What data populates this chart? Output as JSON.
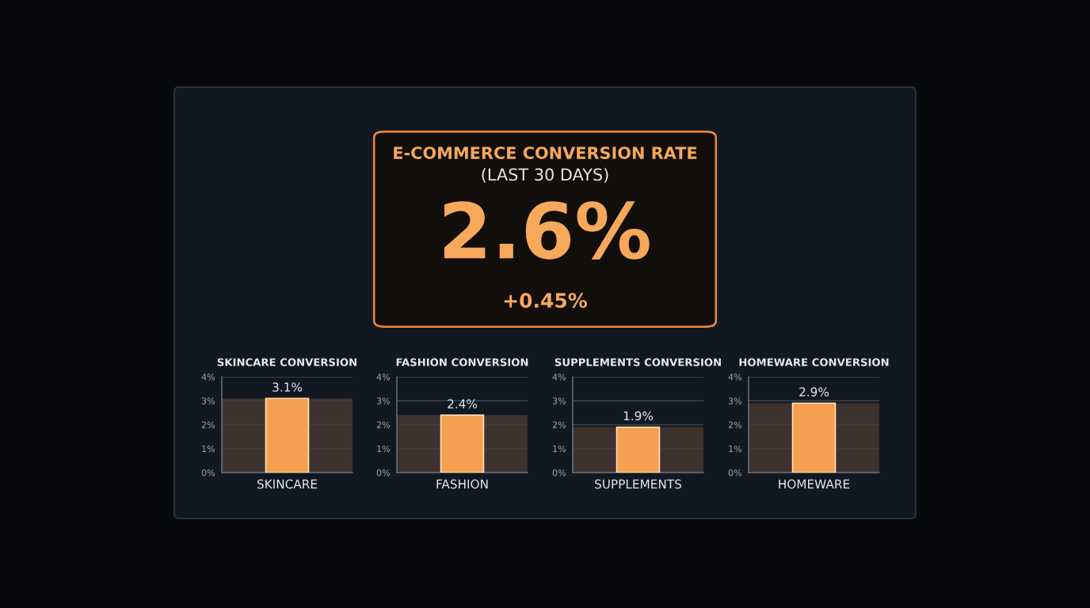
{
  "chart_data": [
    {
      "type": "other",
      "title": "E-COMMERCE CONVERSION RATE",
      "subtitle": "(LAST 30 DAYS)",
      "annotations": [
        "2.6%",
        "+0.45%"
      ]
    },
    {
      "type": "bar",
      "title": "SKINCARE CONVERSION",
      "categories": [
        "SKINCARE"
      ],
      "values": [
        3.1
      ],
      "value_labels": [
        "3.1%"
      ],
      "color": "#f5a050",
      "ylim": [
        0,
        4
      ],
      "yticks": [
        {
          "value": 0,
          "label": "0%"
        },
        {
          "value": 1,
          "label": "1%"
        },
        {
          "value": 2,
          "label": "2%"
        },
        {
          "value": 3,
          "label": "3%"
        },
        {
          "value": 4,
          "label": "4%"
        }
      ],
      "grid": "y",
      "bands": [
        {
          "axis": "y",
          "from": 0,
          "to": 3.1,
          "color": "#4a3a32"
        }
      ]
    },
    {
      "type": "bar",
      "title": "FASHION CONVERSION",
      "categories": [
        "FASHION"
      ],
      "values": [
        2.4
      ],
      "value_labels": [
        "2.4%"
      ],
      "color": "#f5a050",
      "ylim": [
        0,
        4
      ],
      "yticks": [
        {
          "value": 0,
          "label": "0%"
        },
        {
          "value": 1,
          "label": "1%"
        },
        {
          "value": 2,
          "label": "2%"
        },
        {
          "value": 3,
          "label": "3%"
        },
        {
          "value": 4,
          "label": "4%"
        }
      ],
      "grid": "y",
      "bands": [
        {
          "axis": "y",
          "from": 0,
          "to": 2.4,
          "color": "#4a3a32"
        }
      ]
    },
    {
      "type": "bar",
      "title": "SUPPLEMENTS CONVERSION",
      "categories": [
        "SUPPLEMENTS"
      ],
      "values": [
        1.9
      ],
      "value_labels": [
        "1.9%"
      ],
      "color": "#f5a050",
      "ylim": [
        0,
        4
      ],
      "yticks": [
        {
          "value": 0,
          "label": "0%"
        },
        {
          "value": 1,
          "label": "1%"
        },
        {
          "value": 2,
          "label": "2%"
        },
        {
          "value": 3,
          "label": "3%"
        },
        {
          "value": 4,
          "label": "4%"
        }
      ],
      "grid": "y",
      "bands": [
        {
          "axis": "y",
          "from": 0,
          "to": 1.9,
          "color": "#4a3a32"
        }
      ]
    },
    {
      "type": "bar",
      "title": "HOMEWARE CONVERSION",
      "categories": [
        "HOMEWARE"
      ],
      "values": [
        2.9
      ],
      "value_labels": [
        "2.9%"
      ],
      "color": "#f5a050",
      "ylim": [
        0,
        4
      ],
      "yticks": [
        {
          "value": 0,
          "label": "0%"
        },
        {
          "value": 1,
          "label": "1%"
        },
        {
          "value": 2,
          "label": "2%"
        },
        {
          "value": 3,
          "label": "3%"
        },
        {
          "value": 4,
          "label": "4%"
        }
      ],
      "grid": "y",
      "bands": [
        {
          "axis": "y",
          "from": 0,
          "to": 2.9,
          "color": "#4a3a32"
        }
      ]
    }
  ]
}
